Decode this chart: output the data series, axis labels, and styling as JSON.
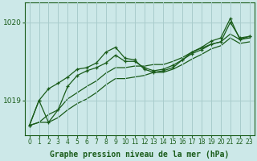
{
  "title": "Graphe pression niveau de la mer (hPa)",
  "bg_color": "#cce8e8",
  "line_color": "#1a5c1a",
  "grid_color": "#a8cccc",
  "ylim": [
    1018.55,
    1020.25
  ],
  "xlim": [
    -0.5,
    23.5
  ],
  "yticks": [
    1019,
    1020
  ],
  "xticks": [
    0,
    1,
    2,
    3,
    4,
    5,
    6,
    7,
    8,
    9,
    10,
    11,
    12,
    13,
    14,
    15,
    16,
    17,
    18,
    19,
    20,
    21,
    22,
    23
  ],
  "series": [
    [
      1018.68,
      1019.0,
      1018.72,
      1018.88,
      1019.18,
      1019.32,
      1019.38,
      1019.42,
      1019.48,
      1019.58,
      1019.5,
      1019.5,
      1019.42,
      1019.38,
      1019.4,
      1019.45,
      1019.52,
      1019.6,
      1019.65,
      1019.72,
      1019.75,
      1020.0,
      1019.8,
      1019.82
    ],
    [
      1018.68,
      1018.72,
      1018.82,
      1018.88,
      1019.02,
      1019.1,
      1019.18,
      1019.25,
      1019.35,
      1019.42,
      1019.42,
      1019.44,
      1019.44,
      1019.46,
      1019.46,
      1019.5,
      1019.55,
      1019.62,
      1019.67,
      1019.72,
      1019.75,
      1019.85,
      1019.78,
      1019.8
    ],
    [
      1018.68,
      1018.72,
      1018.72,
      1018.78,
      1018.88,
      1018.96,
      1019.02,
      1019.1,
      1019.2,
      1019.28,
      1019.28,
      1019.3,
      1019.32,
      1019.36,
      1019.36,
      1019.4,
      1019.46,
      1019.53,
      1019.59,
      1019.66,
      1019.7,
      1019.8,
      1019.73,
      1019.75
    ],
    [
      1018.68,
      1019.0,
      1019.15,
      1019.22,
      1019.3,
      1019.4,
      1019.42,
      1019.48,
      1019.62,
      1019.68,
      1019.54,
      1019.52,
      1019.4,
      1019.36,
      1019.38,
      1019.42,
      1019.52,
      1019.62,
      1019.68,
      1019.76,
      1019.8,
      1020.05,
      1019.78,
      1019.82
    ]
  ],
  "marker_series": [
    0,
    3
  ],
  "font_size_xlabel": 7,
  "font_size_tick": 5.5,
  "font_size_ytick": 6.5
}
